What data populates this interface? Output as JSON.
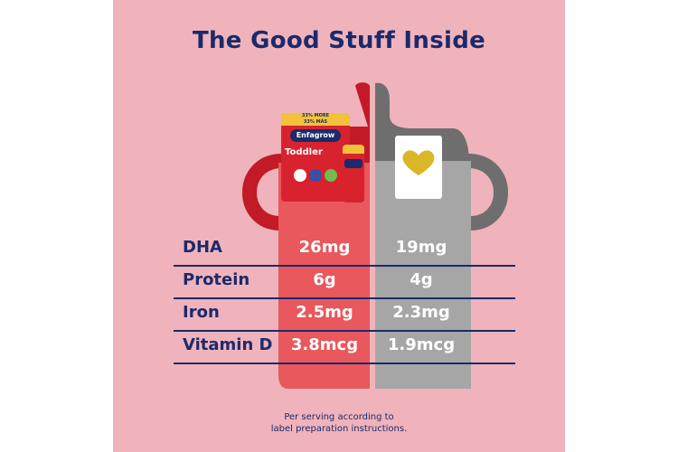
{
  "title": "The Good Stuff Inside",
  "product_can": {
    "lid_text": "33% MORE",
    "lid_subtext": "33% MÁS",
    "brand": "Enfagrow",
    "product": "Toddler"
  },
  "rows": [
    {
      "label": "DHA",
      "enfagrow": "26mg",
      "other": "19mg"
    },
    {
      "label": "Protein",
      "enfagrow": "6g",
      "other": "4g"
    },
    {
      "label": "Iron",
      "enfagrow": "2.5mg",
      "other": "2.3mg"
    },
    {
      "label": "Vitamin D",
      "enfagrow": "3.8mcg",
      "other": "1.9mcg"
    }
  ],
  "footnote_line1": "Per serving according to",
  "footnote_line2": "label preparation instructions.",
  "colors": {
    "background": "#f0b3bb",
    "navy": "#1a2a6c",
    "enfagrow_red": "#d8232e",
    "enfagrow_body": "#e8585c",
    "competitor_grey": "#a6a6a6",
    "competitor_dark": "#6e6e6e",
    "heart_gold": "#d9b726"
  }
}
